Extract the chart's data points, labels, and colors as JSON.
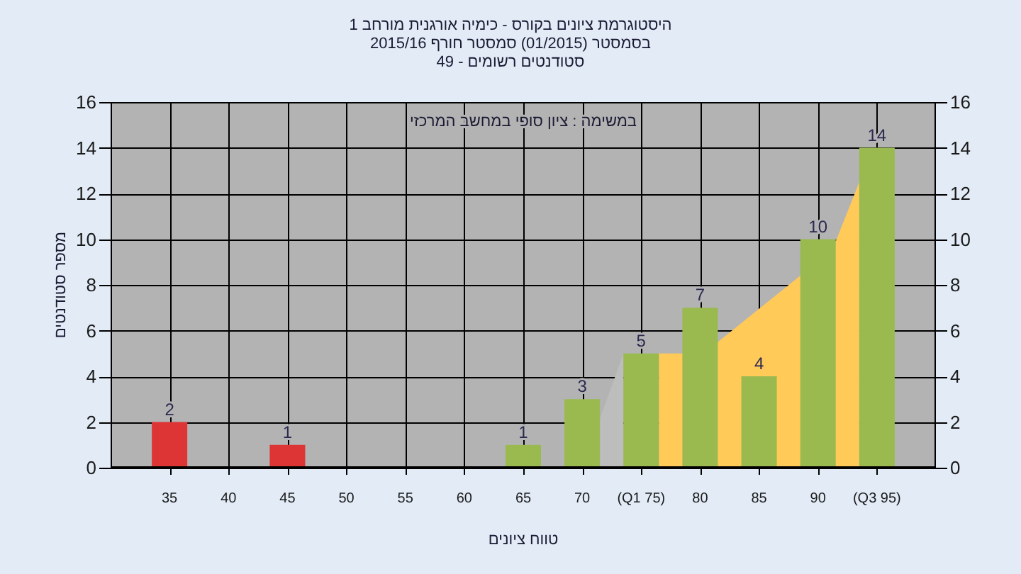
{
  "chart_data": {
    "type": "bar",
    "title": "היסטוגרמת ציונים בקורס - כימיה אורגנית מורחב 1",
    "subtitle": "בסמסטר (01/2015) סמסטר חורף 2015/16",
    "annotations": [
      "סטודנטים רשומים - 49",
      "במשימה : ציון סופי במחשב המרכזי"
    ],
    "xlabel": "טווח ציונים",
    "ylabel": "מספר סטודנטים",
    "series": [
      {
        "type": "area",
        "color": "#bdbdbd",
        "x": [
          70,
          73.5
        ],
        "values": [
          0,
          5
        ]
      },
      {
        "type": "area",
        "color": "#ffca58",
        "x": [
          76.5,
          78.5,
          81.5,
          88.5,
          91.5,
          93.5
        ],
        "values": [
          5,
          5,
          5.5,
          8.4,
          9.9,
          12.5
        ]
      },
      {
        "x": [
          35,
          45,
          65,
          70,
          75,
          80,
          85,
          90,
          95
        ],
        "values": [
          2,
          1,
          1,
          3,
          5,
          7,
          4,
          10,
          14
        ],
        "colors": [
          "#dd3535",
          "#dd3535",
          "#9aba50",
          "#9aba50",
          "#9aba50",
          "#9aba50",
          "#9aba50",
          "#9aba50",
          "#9aba50"
        ],
        "value_labels": [
          "2",
          "1",
          "1",
          "3",
          "5",
          "7",
          "4",
          "10",
          "14"
        ]
      }
    ],
    "xlim": [
      30,
      100
    ],
    "xticks": [
      35,
      40,
      45,
      50,
      55,
      60,
      65,
      70,
      {
        "value": 75,
        "label": "(Q1 75)"
      },
      80,
      85,
      90,
      {
        "value": 95,
        "label": "(Q3 95)"
      }
    ],
    "ylim": [
      0,
      16
    ],
    "yticks": [
      0,
      2,
      4,
      6,
      8,
      10,
      12,
      14,
      16
    ],
    "y2lim": [
      0,
      16
    ],
    "y2ticks": [
      0,
      2,
      4,
      6,
      8,
      10,
      12,
      14,
      16
    ],
    "grid": true
  }
}
